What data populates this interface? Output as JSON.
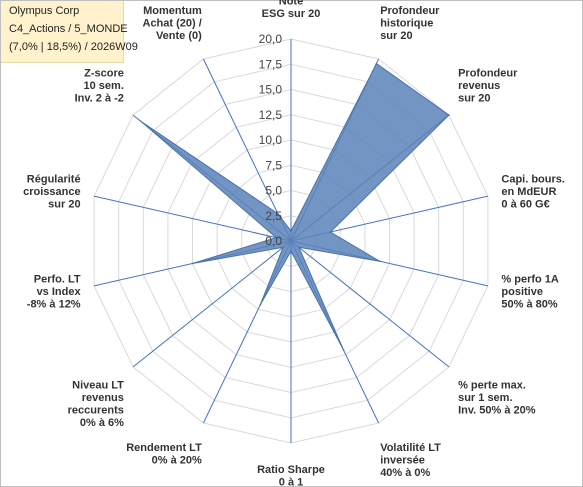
{
  "header": {
    "lines": [
      "Olympus Corp",
      "C4_Actions / 5_MONDE",
      "(7,0% | 18,5%) / 2026W09"
    ]
  },
  "chart_data": {
    "type": "radar",
    "scale": {
      "min": 0,
      "max": 20,
      "step": 2.5
    },
    "tick_labels": [
      "0,0",
      "2,5",
      "5,0",
      "7,5",
      "10,0",
      "12,5",
      "15,0",
      "17,5",
      "20,0"
    ],
    "axes": [
      {
        "label": [
          "Note",
          "ESG sur 20"
        ],
        "value": 1.0
      },
      {
        "label": [
          "Profondeur",
          "historique",
          "sur 20"
        ],
        "value": 19.5
      },
      {
        "label": [
          "Profondeur",
          "revenus",
          "sur 20"
        ],
        "value": 20.0
      },
      {
        "label": [
          "Capi. bours.",
          "en MdEUR",
          "0 à 60 G€"
        ],
        "value": 4.0
      },
      {
        "label": [
          "% perfo 1A",
          "positive",
          "50% à 80%"
        ],
        "value": 9.0
      },
      {
        "label": [
          "% perte max.",
          "sur 1 sem.",
          "Inv. 50% à 20%"
        ],
        "value": 1.0
      },
      {
        "label": [
          "Volatilité LT",
          "inversée",
          "40% à 0%"
        ],
        "value": 12.0
      },
      {
        "label": [
          "Ratio Sharpe",
          "0 à 1"
        ],
        "value": 1.0
      },
      {
        "label": [
          "Rendement LT",
          "0% à 20%"
        ],
        "value": 7.0
      },
      {
        "label": [
          "Niveau LT",
          "revenus",
          "reccurents",
          "0% à 6%"
        ],
        "value": 1.0
      },
      {
        "label": [
          "Perfo. LT",
          "vs Index",
          "-8% à 12%"
        ],
        "value": 10.0
      },
      {
        "label": [
          "Régularité",
          "croissance",
          "sur 20"
        ],
        "value": 1.5
      },
      {
        "label": [
          "Z-score",
          "10 sem.",
          "Inv. 2 à -2"
        ],
        "value": 19.0
      },
      {
        "label": [
          "Momentum",
          "Achat (20) /",
          "Vente (0)"
        ],
        "value": 3.0
      }
    ],
    "colors": {
      "fill": "#5b82b8",
      "stroke": "#4a72a8",
      "grid": "#d9d9d9",
      "spoke": "#4472c4"
    }
  }
}
